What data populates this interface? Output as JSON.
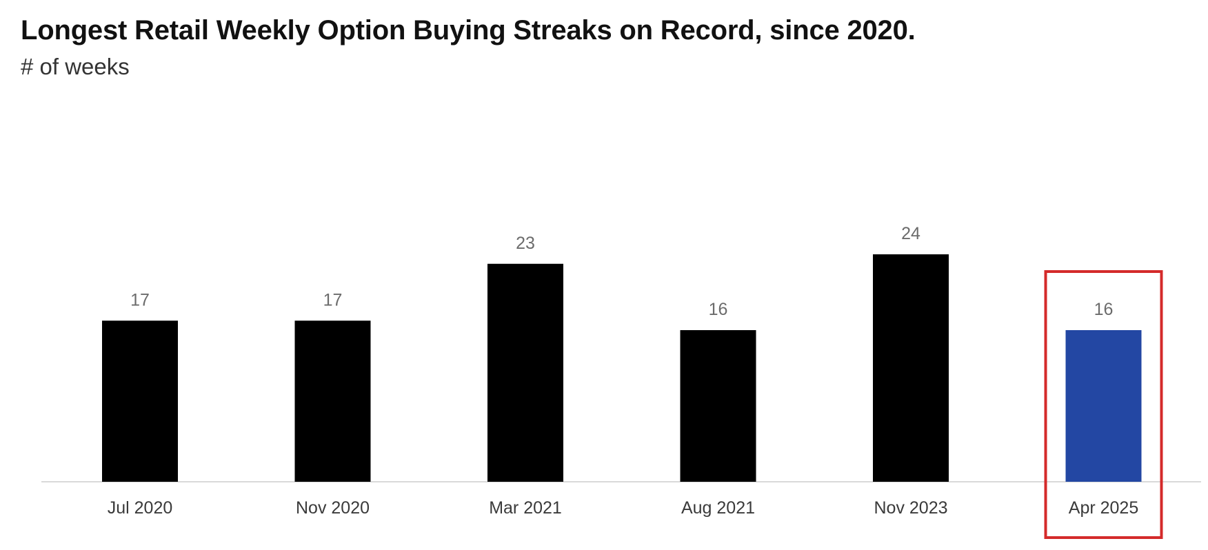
{
  "chart_data": {
    "type": "bar",
    "title": "Longest Retail Weekly Option Buying Streaks on Record, since 2020.",
    "subtitle": "# of weeks",
    "xlabel": "",
    "ylabel": "# of weeks",
    "categories": [
      "Jul 2020",
      "Nov 2020",
      "Mar 2021",
      "Aug 2021",
      "Nov 2023",
      "Apr 2025"
    ],
    "values": [
      17,
      17,
      23,
      16,
      24,
      16
    ],
    "ylim": [
      0,
      28
    ],
    "grid": false,
    "bar_colors": [
      "#000000",
      "#000000",
      "#000000",
      "#000000",
      "#000000",
      "#2347a3"
    ],
    "highlight_index": 5,
    "highlight_color": "#d42a2a",
    "value_label_color": "#6b6b6b",
    "baseline_color": "#d9d9d9"
  }
}
